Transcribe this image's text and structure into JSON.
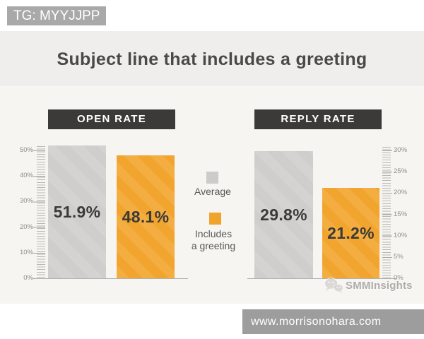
{
  "header": {
    "tag_label": "TG: MYYJJPP",
    "title": "Subject line that includes a greeting"
  },
  "chart_data": [
    {
      "type": "bar",
      "title": "OPEN RATE",
      "categories": [
        "Average",
        "Includes a greeting"
      ],
      "values": [
        51.9,
        48.1
      ],
      "value_labels": [
        "51.9%",
        "48.1%"
      ],
      "ylim": [
        0,
        52
      ],
      "yticks": [
        "50%",
        "40%",
        "30%",
        "20%",
        "10%",
        "0%"
      ],
      "axis_side": "left",
      "grid": false,
      "bar_colors": [
        "#d4d3d1",
        "#f2a52e"
      ]
    },
    {
      "type": "bar",
      "title": "REPLY RATE",
      "categories": [
        "Average",
        "Includes a greeting"
      ],
      "values": [
        29.8,
        21.2
      ],
      "value_labels": [
        "29.8%",
        "21.2%"
      ],
      "ylim": [
        0,
        31
      ],
      "yticks": [
        "30%",
        "25%",
        "20%",
        "15%",
        "10%",
        "5%",
        "0%"
      ],
      "axis_side": "right",
      "grid": false,
      "bar_colors": [
        "#d4d3d1",
        "#f2a52e"
      ]
    }
  ],
  "legend": {
    "position": "center-between-charts",
    "items": [
      {
        "label": "Average",
        "line1": "Average",
        "line2": "",
        "color": "#cccbca"
      },
      {
        "label": "Includes a greeting",
        "line1": "Includes",
        "line2": "a greeting",
        "color": "#f0a42c"
      }
    ]
  },
  "watermark": {
    "brand": "SMMInsights",
    "icon": "chat-bubbles-icon"
  },
  "footer": {
    "url": "www.morrisonohara.com"
  },
  "colors": {
    "tag_bg": "#a9a9a9",
    "title_band_bg": "#efeeec",
    "chart_band_bg": "#f7f5f2",
    "chart_header_bg": "#3b3a38",
    "bar_gray": "#d4d3d1",
    "bar_orange": "#f2a52e",
    "footer_bg": "#9d9d9d"
  }
}
